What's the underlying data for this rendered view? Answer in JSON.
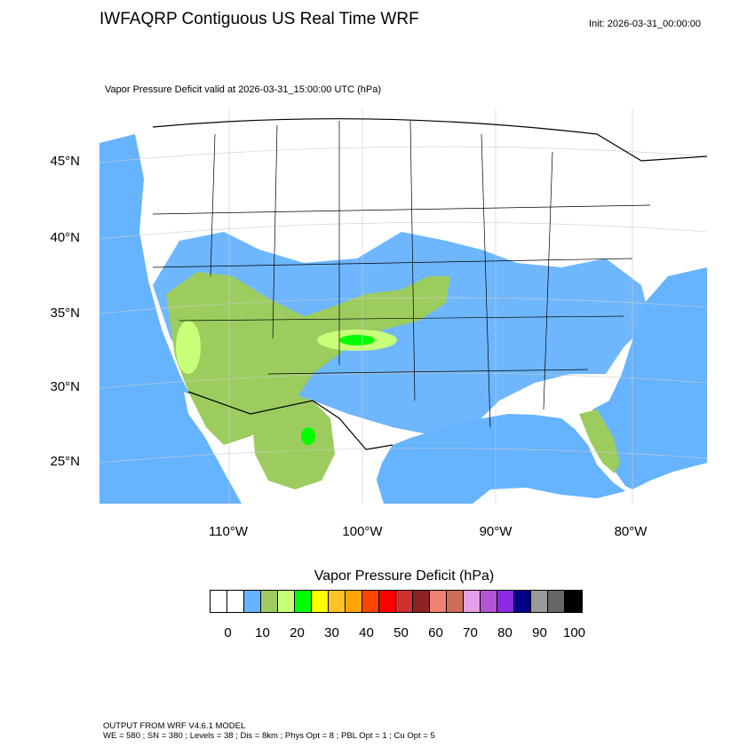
{
  "header": {
    "title": "IWFAQRP Contiguous US Real Time WRF",
    "init": "Init: 2026-03-31_00:00:00"
  },
  "map": {
    "subtitle": "Vapor Pressure Deficit valid at 2026-03-31_15:00:00 UTC   (hPa)",
    "lat_labels": [
      "45°N",
      "40°N",
      "35°N",
      "30°N",
      "25°N"
    ],
    "lon_labels": [
      "110°W",
      "100°W",
      "90°W",
      "80°W"
    ],
    "colors": {
      "ocean": "#66b3ff",
      "land_low": "#ffffff",
      "vpd_10": "#66b3ff",
      "vpd_15": "#9ccc5e",
      "vpd_20": "#c8ff78",
      "vpd_25": "#00ff00",
      "borders": "#000000"
    }
  },
  "colorbar": {
    "title": "Vapor Pressure Deficit  (hPa)",
    "colors": [
      "#ffffff",
      "#ffffff",
      "#66b3ff",
      "#9ccc5e",
      "#c8ff78",
      "#00ff00",
      "#ffff00",
      "#ffc125",
      "#ffa500",
      "#ff4500",
      "#ff0000",
      "#d03030",
      "#8b2323",
      "#f08070",
      "#cd6f56",
      "#e6a0e6",
      "#b455d3",
      "#8a2be2",
      "#00008b",
      "#999999",
      "#666666",
      "#000000"
    ],
    "ticks": [
      "0",
      "10",
      "20",
      "30",
      "40",
      "50",
      "60",
      "70",
      "80",
      "90",
      "100"
    ]
  },
  "footer": {
    "line1": "OUTPUT FROM WRF V4.6.1 MODEL",
    "line2": "WE = 580 ; SN = 380 ; Levels = 38 ; Dis = 8km ; Phys Opt = 8 ; PBL Opt = 1 ; Cu Opt = 5"
  }
}
